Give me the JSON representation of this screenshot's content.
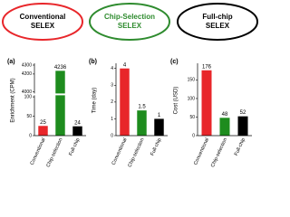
{
  "header": {
    "ellipses": [
      {
        "lines": [
          "Conventional",
          "SELEX"
        ],
        "color": "#e8262a"
      },
      {
        "lines": [
          "Chip-Selection",
          "SELEX"
        ],
        "color": "#2e8b2e"
      },
      {
        "lines": [
          "Full-chip",
          "SELEX"
        ],
        "color": "#000000"
      }
    ]
  },
  "chart_data": [
    {
      "type": "bar",
      "panel_label": "(a)",
      "y_label": "Enrichment (CPM)",
      "categories": [
        "Conventional",
        "Chip-selection",
        "Full-chip"
      ],
      "values": [
        25,
        4236,
        24
      ],
      "colors": [
        "#e8262a",
        "#1e8c1e",
        "#000000"
      ],
      "ylim": [
        0,
        4300
      ],
      "ybreak": [
        100,
        4000
      ],
      "yticks": [
        0,
        50,
        100,
        4000,
        4200,
        4300
      ]
    },
    {
      "type": "bar",
      "panel_label": "(b)",
      "y_label": "Time (day)",
      "categories": [
        "Conventional",
        "Chip-selection",
        "Full-chip"
      ],
      "values": [
        4,
        1.5,
        1
      ],
      "colors": [
        "#e8262a",
        "#1e8c1e",
        "#000000"
      ],
      "ylim": [
        0,
        4.2
      ],
      "yticks": [
        0,
        1,
        2,
        3,
        4
      ]
    },
    {
      "type": "bar",
      "panel_label": "(c)",
      "y_label": "Cost (USD)",
      "categories": [
        "Conventional",
        "Chip-selection",
        "Full-chip"
      ],
      "values": [
        176,
        48,
        52
      ],
      "colors": [
        "#e8262a",
        "#1e8c1e",
        "#000000"
      ],
      "ylim": [
        0,
        190
      ],
      "yticks": [
        0,
        50,
        100,
        150
      ]
    }
  ]
}
